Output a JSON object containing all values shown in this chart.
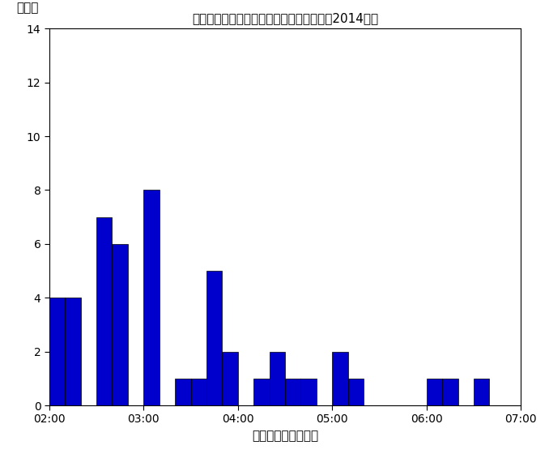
{
  "title": "パフォーマンス時間ごとの歌手数の分布（2014年）",
  "xlabel": "パフォーマンス時間",
  "ylabel": "歌手数",
  "bar_color": "#0000cc",
  "edge_color": "#000000",
  "background_color": "#ffffff",
  "ylim": [
    0,
    14
  ],
  "yticks": [
    0,
    2,
    4,
    6,
    8,
    10,
    12,
    14
  ],
  "xlim_start": 7200,
  "xlim_end": 25200,
  "xtick_positions": [
    7200,
    10800,
    14400,
    18000,
    21600,
    25200
  ],
  "xtick_labels": [
    "02:00",
    "03:00",
    "04:00",
    "05:00",
    "06:00",
    "07:00"
  ],
  "bin_width": 600,
  "bins_seconds": [
    7200,
    7800,
    8400,
    9000,
    9600,
    10200,
    10800,
    11400,
    12000,
    12600,
    13200,
    13800,
    14400,
    15000,
    15600,
    16200,
    16800,
    17400,
    18000,
    18600,
    19200,
    19800,
    20400,
    21000,
    21600,
    22200,
    22800,
    23400,
    24000,
    24600
  ],
  "counts": [
    4,
    4,
    0,
    7,
    6,
    0,
    8,
    0,
    1,
    1,
    5,
    2,
    0,
    1,
    2,
    1,
    1,
    0,
    2,
    1,
    0,
    0,
    0,
    0,
    1,
    1,
    0,
    1,
    0,
    0
  ]
}
